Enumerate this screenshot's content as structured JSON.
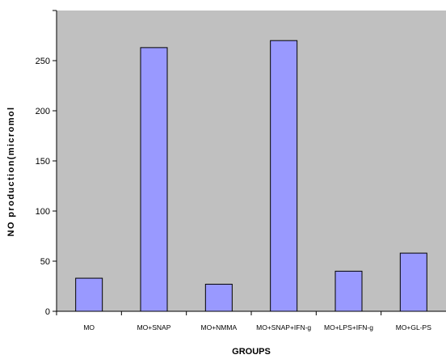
{
  "chart_data": {
    "type": "bar",
    "categories": [
      "MO",
      "MO+SNAP",
      "MO+NMMA",
      "MO+SNAP+IFN-g",
      "MO+LPS+IFN-g",
      "MO+GL-PS"
    ],
    "values": [
      33,
      263,
      27,
      270,
      40,
      58
    ],
    "xlabel": "GROUPS",
    "ylabel": "NO production(micromol",
    "ylim": [
      0,
      300
    ],
    "yticks": [
      0,
      50,
      100,
      150,
      200,
      250
    ],
    "grid": false,
    "legend": "none",
    "colors": {
      "plot_background": "#c0c0c0",
      "bar_fill": "#9999ff",
      "bar_stroke": "#000000"
    }
  }
}
